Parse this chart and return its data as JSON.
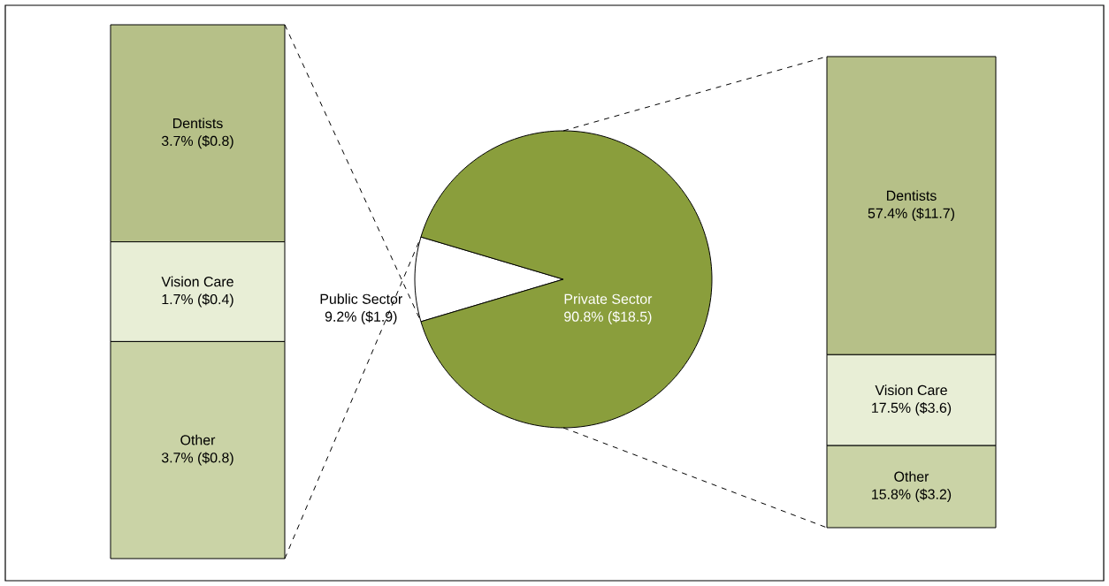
{
  "chart_data": [
    {
      "type": "bar",
      "stacked": true,
      "categories": [
        null
      ],
      "series": [
        {
          "name": "Other",
          "color": "#cad3a6",
          "values": [
            3.7
          ],
          "value_labels": [
            "3.7% ($0.8)"
          ]
        },
        {
          "name": "Vision Care",
          "color": "#e8eed6",
          "values": [
            1.7
          ],
          "value_labels": [
            "1.7% ($0.4)"
          ]
        },
        {
          "name": "Dentists",
          "color": "#b6c088",
          "values": [
            3.7
          ],
          "value_labels": [
            "3.7% ($0.8)"
          ]
        }
      ]
    },
    {
      "type": "pie",
      "categories": [
        "Public Sector",
        "Private Sector"
      ],
      "values": [
        9.2,
        90.8
      ],
      "colors": [
        "#ffffff",
        "#8a9e3c"
      ],
      "value_labels": [
        "9.2% ($1.9)",
        "90.8% ($18.5)"
      ]
    },
    {
      "type": "bar",
      "stacked": true,
      "categories": [
        null
      ],
      "series": [
        {
          "name": "Other",
          "color": "#cad3a6",
          "values": [
            15.8
          ],
          "value_labels": [
            "15.8% ($3.2)"
          ]
        },
        {
          "name": "Vision Care",
          "color": "#e8eed6",
          "values": [
            17.5
          ],
          "value_labels": [
            "17.5% ($3.6)"
          ]
        },
        {
          "name": "Dentists",
          "color": "#b6c088",
          "values": [
            57.4
          ],
          "value_labels": [
            "57.4% ($11.7)"
          ]
        }
      ]
    }
  ]
}
